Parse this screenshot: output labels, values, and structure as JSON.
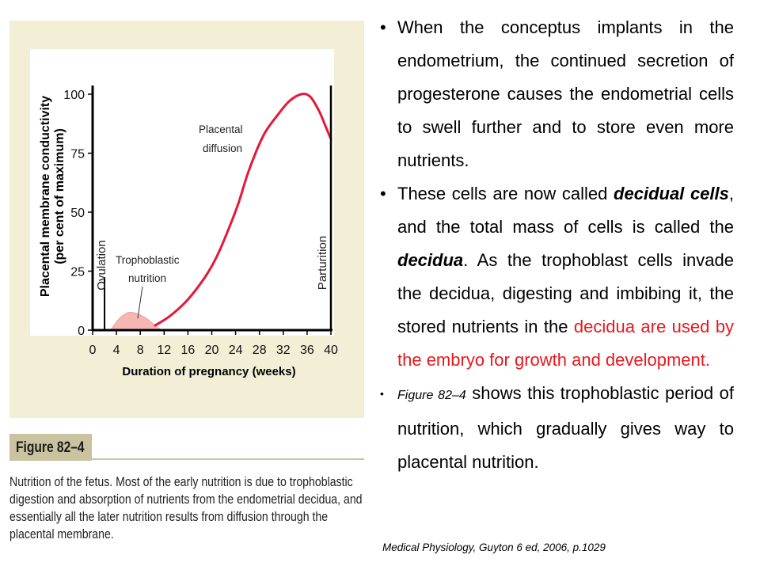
{
  "chart_data": {
    "type": "line",
    "ylabel": "Placental membrane conductivity",
    "ylabel2": "(per cent of maximum)",
    "xlabel": "Duration of pregnancy (weeks)",
    "x_ticks": [
      "0",
      "4",
      "8",
      "12",
      "16",
      "20",
      "24",
      "28",
      "32",
      "36",
      "40"
    ],
    "y_ticks": [
      "0",
      "25",
      "50",
      "75",
      "100"
    ],
    "xlim": [
      0,
      40
    ],
    "ylim": [
      0,
      100
    ],
    "series": [
      {
        "name": "Placental diffusion",
        "color": "#e4183a",
        "x": [
          10.5,
          13,
          16,
          19,
          21,
          23,
          24.5,
          26,
          27.5,
          29,
          31,
          33,
          35,
          36.5,
          38,
          39,
          40
        ],
        "y": [
          2,
          6,
          13,
          23,
          32,
          44,
          54,
          66,
          76,
          84,
          91,
          97,
          100,
          99,
          93,
          87,
          81
        ]
      },
      {
        "name": "Trophoblastic nutrition",
        "color": "#f6b7b4",
        "x": [
          3,
          4.5,
          6,
          7.5,
          9,
          10.5,
          11.5
        ],
        "y": [
          0,
          5,
          7.5,
          7,
          5,
          2,
          0
        ]
      }
    ],
    "markers": [
      {
        "label": "Ovulation",
        "x": 2
      },
      {
        "label": "Parturition",
        "x": 40
      }
    ],
    "annotations": {
      "placental_1": "Placental",
      "placental_2": "diffusion",
      "tropho_1": "Trophoblastic",
      "tropho_2": "nutrition"
    }
  },
  "figure": {
    "label": "Figure 82–4",
    "caption": "Nutrition of the fetus. Most of the early nutrition is due to trophoblastic digestion and absorption of nutrients from the endometrial decidua, and essentially all the later nutrition results from diffusion through the placental membrane."
  },
  "bullets": {
    "b1": "When the conceptus implants in the endometrium, the continued secretion of progesterone causes the endometrial cells to swell further and to store even more nutrients.",
    "b2_a": "These cells are now called ",
    "b2_b": "decidual cells",
    "b2_c": ", and the total mass of cells is called the ",
    "b2_d": "decidua",
    "b2_e": ". As the trophoblast cells invade the decidua, digesting and imbibing it, the stored nutrients in the ",
    "b2_f": "decidua are used by the embryo for growth and development.",
    "b3_a": "Figure 82–4",
    "b3_b": " shows this trophoblastic period of nutrition, which gradually gives way to placental nutrition."
  },
  "citation": "Medical Physiology, Guyton 6 ed, 2006, p.1029",
  "colors": {
    "red_text": "#e8181e",
    "panel_bg": "#f2efd6",
    "label_bg": "#c9c39f"
  }
}
